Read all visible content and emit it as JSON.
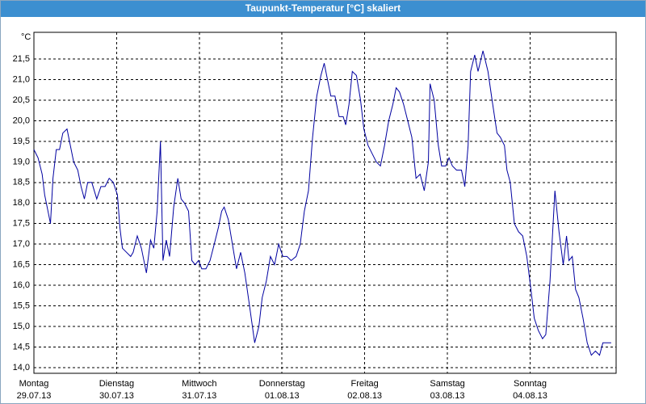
{
  "chart_data": {
    "type": "line",
    "title": "Taupunkt-Temperatur [°C] skaliert",
    "y_unit": "°C",
    "color": "#0000a0",
    "grid": true,
    "xlim": [
      0,
      7.04
    ],
    "xticks": [
      {
        "value": 0,
        "label": "Montag",
        "date": "29.07.13"
      },
      {
        "value": 1,
        "label": "Dienstag",
        "date": "30.07.13"
      },
      {
        "value": 2,
        "label": "Mittwoch",
        "date": "31.07.13"
      },
      {
        "value": 3,
        "label": "Donnerstag",
        "date": "01.08.13"
      },
      {
        "value": 4,
        "label": "Freitag",
        "date": "02.08.13"
      },
      {
        "value": 5,
        "label": "Samstag",
        "date": "03.08.13"
      },
      {
        "value": 6,
        "label": "Sonntag",
        "date": "04.08.13"
      }
    ],
    "ylim": [
      13.86,
      22.15
    ],
    "yticks": [
      {
        "value": 14.0,
        "label": "14,0"
      },
      {
        "value": 14.5,
        "label": "14,5"
      },
      {
        "value": 15.0,
        "label": "15,0"
      },
      {
        "value": 15.5,
        "label": "15,5"
      },
      {
        "value": 16.0,
        "label": "16,0"
      },
      {
        "value": 16.5,
        "label": "16,5"
      },
      {
        "value": 17.0,
        "label": "17,0"
      },
      {
        "value": 17.5,
        "label": "17,5"
      },
      {
        "value": 18.0,
        "label": "18,0"
      },
      {
        "value": 18.5,
        "label": "18,5"
      },
      {
        "value": 19.0,
        "label": "19,0"
      },
      {
        "value": 19.5,
        "label": "19,5"
      },
      {
        "value": 20.0,
        "label": "20,0"
      },
      {
        "value": 20.5,
        "label": "20,5"
      },
      {
        "value": 21.0,
        "label": "21,0"
      },
      {
        "value": 21.5,
        "label": "21,5"
      }
    ],
    "x": [
      0,
      0.05,
      0.1,
      0.13,
      0.16,
      0.2,
      0.23,
      0.27,
      0.31,
      0.35,
      0.4,
      0.44,
      0.48,
      0.53,
      0.57,
      0.61,
      0.65,
      0.7,
      0.76,
      0.81,
      0.86,
      0.91,
      0.96,
      1.01,
      1.04,
      1.07,
      1.12,
      1.17,
      1.2,
      1.25,
      1.3,
      1.36,
      1.41,
      1.45,
      1.49,
      1.53,
      1.56,
      1.6,
      1.64,
      1.69,
      1.74,
      1.78,
      1.82,
      1.87,
      1.91,
      1.95,
      1.99,
      2.03,
      2.08,
      2.13,
      2.18,
      2.23,
      2.27,
      2.3,
      2.35,
      2.4,
      2.45,
      2.5,
      2.55,
      2.6,
      2.67,
      2.72,
      2.76,
      2.81,
      2.86,
      2.91,
      2.96,
      3.01,
      3.06,
      3.11,
      3.17,
      3.22,
      3.27,
      3.32,
      3.37,
      3.42,
      3.47,
      3.51,
      3.54,
      3.59,
      3.64,
      3.69,
      3.74,
      3.77,
      3.81,
      3.85,
      3.9,
      3.95,
      3.99,
      4.04,
      4.09,
      4.14,
      4.19,
      4.24,
      4.29,
      4.34,
      4.38,
      4.42,
      4.47,
      4.52,
      4.57,
      4.62,
      4.67,
      4.72,
      4.77,
      4.79,
      4.84,
      4.89,
      4.93,
      4.98,
      5.02,
      5.06,
      5.11,
      5.17,
      5.21,
      5.25,
      5.28,
      5.33,
      5.37,
      5.43,
      5.49,
      5.54,
      5.6,
      5.64,
      5.69,
      5.72,
      5.76,
      5.81,
      5.86,
      5.91,
      5.96,
      6.01,
      6.05,
      6.1,
      6.15,
      6.19,
      6.24,
      6.3,
      6.35,
      6.4,
      6.44,
      6.47,
      6.51,
      6.55,
      6.59,
      6.64,
      6.69,
      6.74,
      6.79,
      6.84,
      6.88,
      6.93,
      6.98
    ],
    "values": [
      19.3,
      19.1,
      18.7,
      18.2,
      17.9,
      17.5,
      18.6,
      19.3,
      19.3,
      19.7,
      19.8,
      19.4,
      19.0,
      18.8,
      18.4,
      18.1,
      18.5,
      18.5,
      18.1,
      18.4,
      18.4,
      18.6,
      18.5,
      18.2,
      17.4,
      16.9,
      16.8,
      16.7,
      16.8,
      17.2,
      16.9,
      16.3,
      17.1,
      16.9,
      17.8,
      19.5,
      16.6,
      17.1,
      16.7,
      17.9,
      18.6,
      18.1,
      18.0,
      17.8,
      16.6,
      16.5,
      16.6,
      16.4,
      16.4,
      16.6,
      17.0,
      17.4,
      17.8,
      17.9,
      17.6,
      17.0,
      16.4,
      16.8,
      16.3,
      15.6,
      14.6,
      15.0,
      15.7,
      16.1,
      16.7,
      16.5,
      17.0,
      16.7,
      16.7,
      16.6,
      16.7,
      17.0,
      17.8,
      18.3,
      19.6,
      20.6,
      21.1,
      21.4,
      21.1,
      20.6,
      20.6,
      20.1,
      20.1,
      19.9,
      20.4,
      21.2,
      21.1,
      20.5,
      19.8,
      19.4,
      19.2,
      19.0,
      18.9,
      19.4,
      20.0,
      20.4,
      20.8,
      20.7,
      20.4,
      20.0,
      19.6,
      18.6,
      18.7,
      18.3,
      19.0,
      20.9,
      20.5,
      19.4,
      18.9,
      18.9,
      19.1,
      18.9,
      18.8,
      18.8,
      18.4,
      19.4,
      21.2,
      21.6,
      21.2,
      21.7,
      21.2,
      20.5,
      19.7,
      19.6,
      19.4,
      18.8,
      18.5,
      17.5,
      17.3,
      17.2,
      16.7,
      15.9,
      15.2,
      14.9,
      14.7,
      14.8,
      16.1,
      18.3,
      17.3,
      16.5,
      17.2,
      16.6,
      16.7,
      15.9,
      15.7,
      15.2,
      14.6,
      14.3,
      14.4,
      14.3,
      14.6,
      14.6,
      14.6
    ]
  }
}
